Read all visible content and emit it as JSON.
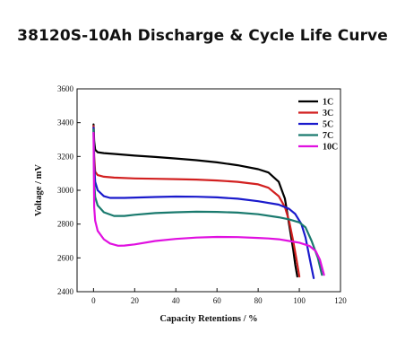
{
  "chart_data": {
    "type": "line",
    "title": "38120S-10Ah Discharge & Cycle Life Curve",
    "xlabel": "Capacity Retentions / %",
    "ylabel": "Voltage / mV",
    "xlim": [
      -8,
      120
    ],
    "ylim": [
      2400,
      3600
    ],
    "xticks": [
      0,
      20,
      40,
      60,
      80,
      100,
      120
    ],
    "yticks": [
      2400,
      2600,
      2800,
      3000,
      3200,
      3400,
      3600
    ],
    "legend_position": "top-right",
    "grid": false,
    "series": [
      {
        "name": "1C",
        "color": "#000000",
        "x": [
          0,
          0.3,
          0.8,
          2,
          5,
          10,
          20,
          30,
          40,
          50,
          60,
          70,
          80,
          85,
          90,
          93,
          95,
          97,
          98,
          99
        ],
        "y": [
          3390,
          3290,
          3240,
          3225,
          3220,
          3215,
          3205,
          3197,
          3188,
          3178,
          3165,
          3148,
          3125,
          3105,
          3050,
          2950,
          2800,
          2650,
          2560,
          2490
        ]
      },
      {
        "name": "3C",
        "color": "#d22020",
        "x": [
          0,
          0.3,
          0.8,
          2,
          5,
          10,
          20,
          30,
          40,
          50,
          60,
          70,
          80,
          85,
          90,
          93,
          95,
          97,
          98.5,
          100
        ],
        "y": [
          3380,
          3200,
          3110,
          3090,
          3080,
          3075,
          3070,
          3068,
          3066,
          3063,
          3058,
          3050,
          3035,
          3015,
          2965,
          2900,
          2820,
          2700,
          2600,
          2490
        ]
      },
      {
        "name": "5C",
        "color": "#1a1acc",
        "x": [
          0,
          0.3,
          0.8,
          2,
          5,
          8,
          15,
          30,
          40,
          50,
          60,
          70,
          80,
          90,
          95,
          98,
          101,
          103,
          105,
          107
        ],
        "y": [
          3370,
          3150,
          3050,
          3000,
          2965,
          2955,
          2955,
          2960,
          2963,
          2962,
          2958,
          2950,
          2935,
          2915,
          2890,
          2860,
          2800,
          2720,
          2600,
          2480
        ]
      },
      {
        "name": "7C",
        "color": "#1a7a6e",
        "x": [
          0,
          0.3,
          0.8,
          2,
          5,
          10,
          15,
          20,
          30,
          40,
          50,
          60,
          70,
          80,
          90,
          95,
          100,
          103,
          106,
          109,
          111
        ],
        "y": [
          3360,
          3050,
          2960,
          2910,
          2870,
          2848,
          2848,
          2855,
          2865,
          2870,
          2873,
          2872,
          2868,
          2858,
          2840,
          2828,
          2810,
          2780,
          2700,
          2600,
          2500
        ]
      },
      {
        "name": "10C",
        "color": "#e010e0",
        "x": [
          0,
          0.3,
          0.8,
          2,
          5,
          8,
          12,
          15,
          20,
          30,
          40,
          50,
          60,
          70,
          80,
          85,
          90,
          95,
          100,
          105,
          108,
          110,
          112
        ],
        "y": [
          3340,
          2900,
          2820,
          2760,
          2710,
          2685,
          2672,
          2673,
          2680,
          2700,
          2712,
          2720,
          2724,
          2723,
          2718,
          2715,
          2710,
          2700,
          2690,
          2670,
          2640,
          2590,
          2500
        ]
      }
    ]
  }
}
